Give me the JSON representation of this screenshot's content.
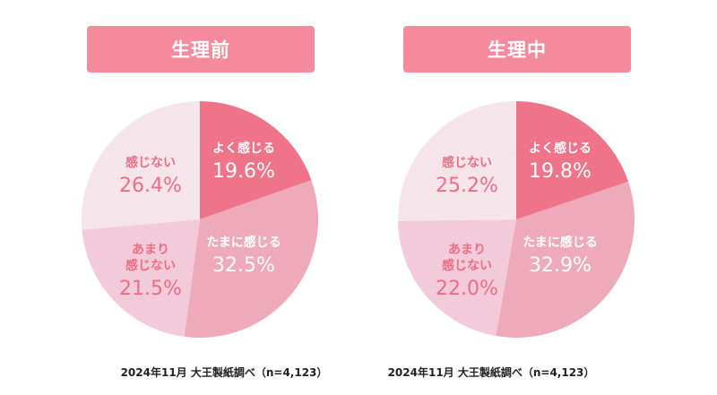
{
  "chart_data": [
    {
      "type": "pie",
      "title": "生理前",
      "categories": [
        "よく感じる",
        "たまに感じる",
        "あまり感じない",
        "感じない"
      ],
      "values": [
        19.6,
        32.5,
        21.5,
        26.4
      ],
      "labels": [
        "19.6%",
        "32.5%",
        "21.5%",
        "26.4%"
      ],
      "colors": [
        "#ef7389",
        "#eeaabb",
        "#f2cad9",
        "#f5e4ea"
      ],
      "source": "2024年11月 大王製紙調べ（n=4,123）"
    },
    {
      "type": "pie",
      "title": "生理中",
      "categories": [
        "よく感じる",
        "たまに感じる",
        "あまり感じない",
        "感じない"
      ],
      "values": [
        19.8,
        32.9,
        22.0,
        25.2
      ],
      "labels": [
        "19.8%",
        "32.9%",
        "22.0%",
        "25.2%"
      ],
      "colors": [
        "#ef7389",
        "#eeaabb",
        "#f2cad9",
        "#f5e4ea"
      ],
      "source": "2024年11月 大王製紙調べ（n=4,123）"
    }
  ],
  "text_colors": {
    "on_dark": "#ffffff",
    "on_light": "#ee6d86"
  },
  "title_color": "#f58a9d"
}
